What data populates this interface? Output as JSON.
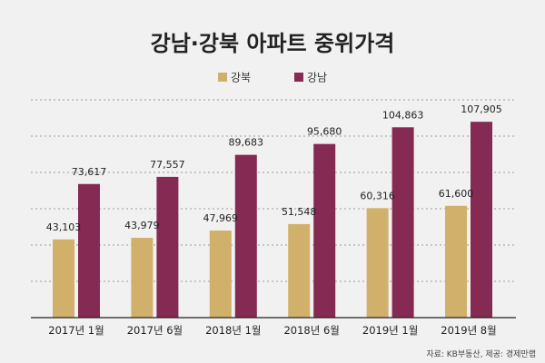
{
  "chart_data": {
    "type": "bar",
    "title": "강남·강북 아파트 중위가격",
    "categories": [
      "2017년 1월",
      "2017년 6월",
      "2018년 1월",
      "2018년 6월",
      "2019년 1월",
      "2019년 8월"
    ],
    "series": [
      {
        "name": "강북",
        "color": "#d1b06c",
        "values": [
          43103,
          43979,
          47969,
          51548,
          60316,
          61600
        ],
        "labels": [
          "43,103",
          "43,979",
          "47,969",
          "51,548",
          "60,316",
          "61,600"
        ]
      },
      {
        "name": "강남",
        "color": "#842a53",
        "values": [
          73617,
          77557,
          89683,
          95680,
          104863,
          107905
        ],
        "labels": [
          "73,617",
          "77,557",
          "89,683",
          "95,680",
          "104,863",
          "107,905"
        ]
      }
    ],
    "ylim": [
      0,
      120000
    ],
    "grid": true,
    "legend_position": "top",
    "source": "자료: KB부동산, 제공: 경제만랩"
  }
}
